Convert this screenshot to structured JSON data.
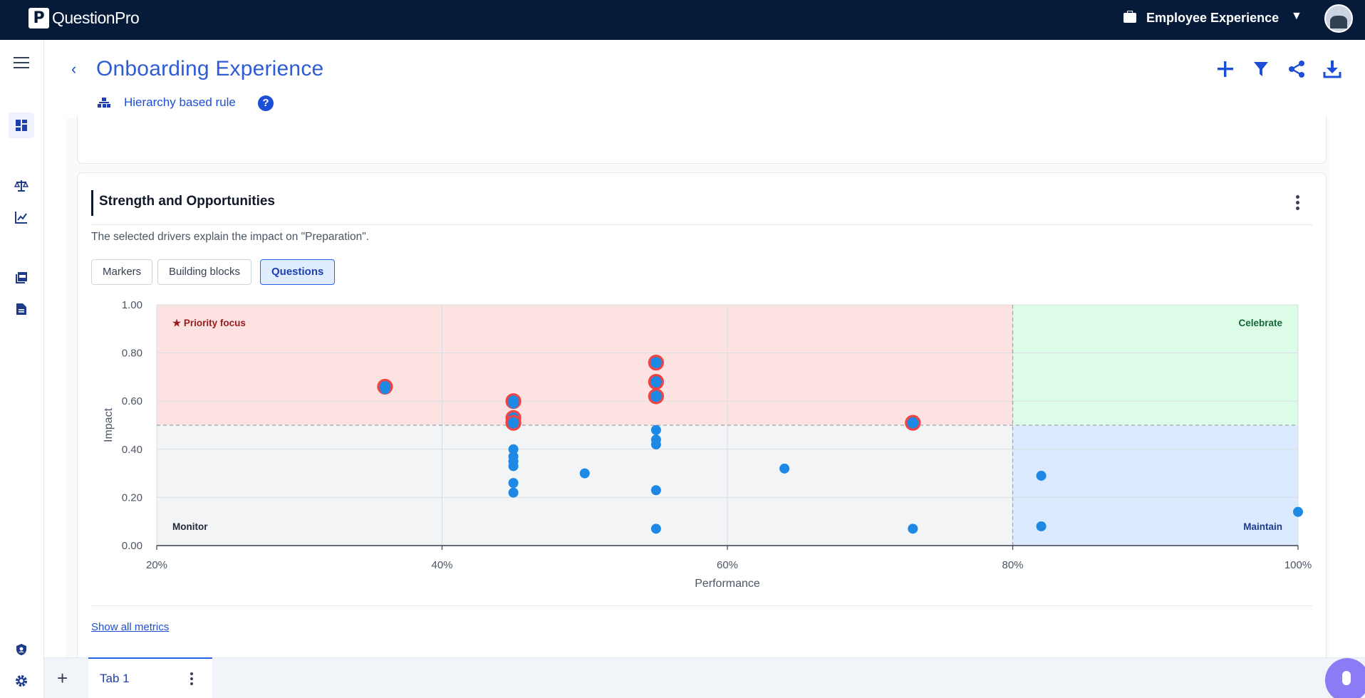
{
  "topbar": {
    "logo_letter": "P",
    "brand": "QuestionPro",
    "product": "Employee Experience",
    "product_icon": "briefcase-icon",
    "caret": "▼"
  },
  "header": {
    "back": "‹",
    "title": "Onboarding Experience",
    "rule": "Hierarchy based rule",
    "help": "?",
    "actions": [
      {
        "name": "add-icon",
        "glyph": "+"
      },
      {
        "name": "filter-icon",
        "glyph": "⏷"
      },
      {
        "name": "share-icon",
        "glyph": "⋖"
      },
      {
        "name": "download-icon",
        "glyph": "⤓"
      }
    ]
  },
  "card": {
    "title": "Strength and Opportunities",
    "subtitle": "The selected drivers explain the impact on \"Preparation\".",
    "toggles": [
      "Markers",
      "Building blocks",
      "Questions"
    ],
    "active_toggle": "Questions",
    "show_all": "Show all metrics"
  },
  "colors": {
    "priority_bg": "#fde2e2",
    "celebrate_bg": "#dcfce7",
    "monitor_bg": "#f3f4f6",
    "maintain_bg": "#dbeafe",
    "point": "#1e88e5",
    "highlight_ring": "#ef4444",
    "accent": "#2f5bd3"
  },
  "chart_data": {
    "type": "scatter",
    "xlabel": "Performance",
    "ylabel": "Impact",
    "xlim": [
      20,
      100
    ],
    "ylim": [
      0,
      1
    ],
    "x_ticks": [
      "20%",
      "40%",
      "60%",
      "80%",
      "100%"
    ],
    "y_ticks": [
      "0.00",
      "0.20",
      "0.40",
      "0.60",
      "0.80",
      "1.00"
    ],
    "thresholds": {
      "x": 80,
      "y": 0.5
    },
    "quadrants": {
      "top_left": "★ Priority focus",
      "top_right": "Celebrate",
      "bottom_left": "Monitor",
      "bottom_right": "Maintain"
    },
    "points": [
      {
        "x": 36,
        "y": 0.66,
        "highlight": true
      },
      {
        "x": 36,
        "y": 0.65,
        "highlight": false
      },
      {
        "x": 45,
        "y": 0.6,
        "highlight": true
      },
      {
        "x": 45,
        "y": 0.59,
        "highlight": false
      },
      {
        "x": 45,
        "y": 0.53,
        "highlight": true
      },
      {
        "x": 45,
        "y": 0.51,
        "highlight": true
      },
      {
        "x": 45,
        "y": 0.4,
        "highlight": false
      },
      {
        "x": 45,
        "y": 0.37,
        "highlight": false
      },
      {
        "x": 45,
        "y": 0.35,
        "highlight": false
      },
      {
        "x": 45,
        "y": 0.33,
        "highlight": false
      },
      {
        "x": 45,
        "y": 0.26,
        "highlight": false
      },
      {
        "x": 45,
        "y": 0.22,
        "highlight": false
      },
      {
        "x": 50,
        "y": 0.3,
        "highlight": false
      },
      {
        "x": 55,
        "y": 0.76,
        "highlight": true
      },
      {
        "x": 55,
        "y": 0.68,
        "highlight": true
      },
      {
        "x": 55,
        "y": 0.62,
        "highlight": true
      },
      {
        "x": 55,
        "y": 0.48,
        "highlight": false
      },
      {
        "x": 55,
        "y": 0.44,
        "highlight": false
      },
      {
        "x": 55,
        "y": 0.42,
        "highlight": false
      },
      {
        "x": 55,
        "y": 0.23,
        "highlight": false
      },
      {
        "x": 55,
        "y": 0.07,
        "highlight": false
      },
      {
        "x": 64,
        "y": 0.32,
        "highlight": false
      },
      {
        "x": 73,
        "y": 0.51,
        "highlight": true
      },
      {
        "x": 73,
        "y": 0.07,
        "highlight": false
      },
      {
        "x": 82,
        "y": 0.29,
        "highlight": false
      },
      {
        "x": 82,
        "y": 0.08,
        "highlight": false
      },
      {
        "x": 100,
        "y": 0.14,
        "highlight": false
      }
    ]
  },
  "tabs": {
    "add": "+",
    "items": [
      "Tab 1"
    ]
  },
  "rail": {
    "icons": [
      "menu-icon",
      "dashboard-icon",
      "balance-icon",
      "trend-icon",
      "pdf-icon",
      "document-icon",
      "shield-icon",
      "gear-icon"
    ]
  }
}
